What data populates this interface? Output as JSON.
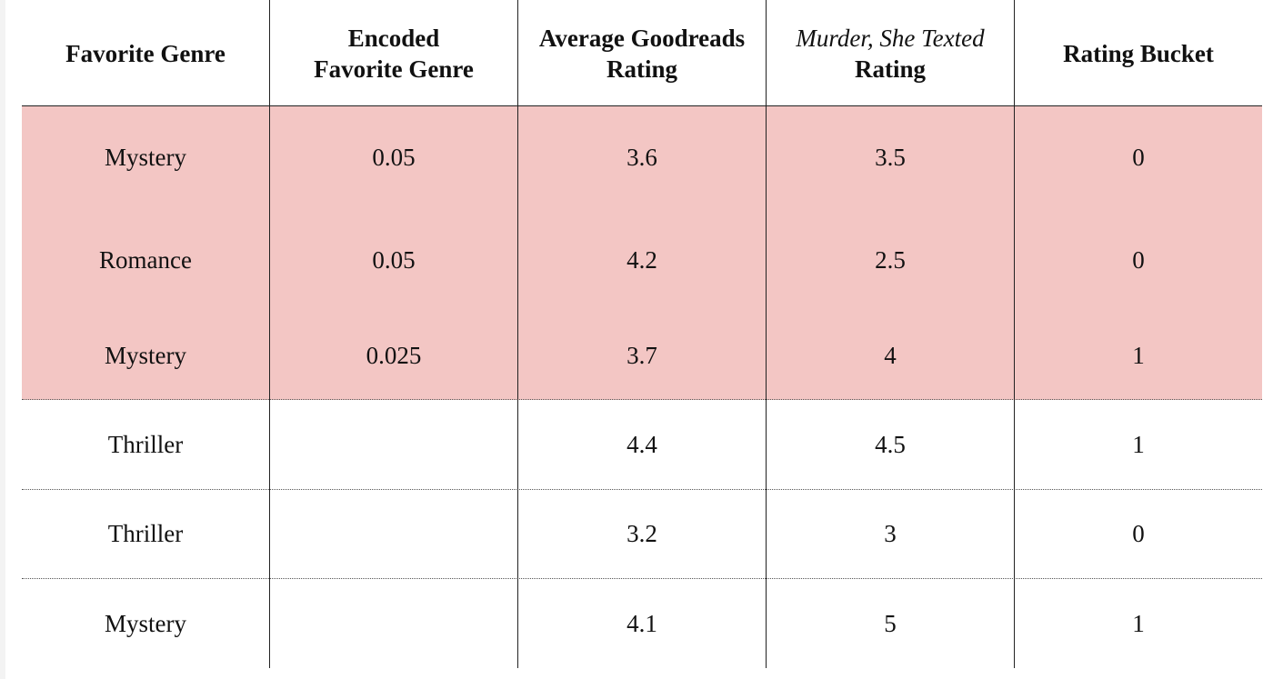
{
  "table": {
    "headers": [
      {
        "line1": "Favorite Genre",
        "line2": ""
      },
      {
        "line1": "Encoded",
        "line2": "Favorite Genre"
      },
      {
        "line1": "Average Goodreads",
        "line2": "Rating"
      },
      {
        "line1": "Murder, She Texted",
        "line2": "Rating"
      },
      {
        "line1": "Rating Bucket",
        "line2": ""
      }
    ],
    "rows": [
      {
        "genre": "Mystery",
        "encoded": "0.05",
        "avg": "3.6",
        "mst": "3.5",
        "bucket": "0",
        "highlighted": true
      },
      {
        "genre": "Romance",
        "encoded": "0.05",
        "avg": "4.2",
        "mst": "2.5",
        "bucket": "0",
        "highlighted": true
      },
      {
        "genre": "Mystery",
        "encoded": "0.025",
        "avg": "3.7",
        "mst": "4",
        "bucket": "1",
        "highlighted": true
      },
      {
        "genre": "Thriller",
        "encoded": "",
        "avg": "4.4",
        "mst": "4.5",
        "bucket": "1",
        "highlighted": false
      },
      {
        "genre": "Thriller",
        "encoded": "",
        "avg": "3.2",
        "mst": "3",
        "bucket": "0",
        "highlighted": false
      },
      {
        "genre": "Mystery",
        "encoded": "",
        "avg": "4.1",
        "mst": "5",
        "bucket": "1",
        "highlighted": false
      }
    ],
    "highlight_color": "#f3c6c4"
  }
}
